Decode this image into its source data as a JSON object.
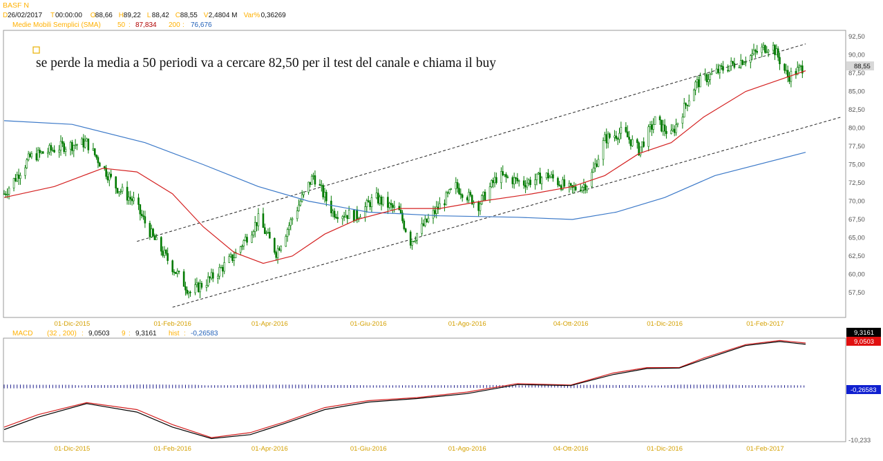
{
  "header": {
    "symbol": "BASF N",
    "bar_info": [
      {
        "key": "D",
        "value": "26/02/2017"
      },
      {
        "key": "T",
        "value": "00:00:00"
      },
      {
        "key": "O",
        "value": "88,66"
      },
      {
        "key": "H",
        "value": "89,22"
      },
      {
        "key": "L",
        "value": "88,42"
      },
      {
        "key": "C",
        "value": "88,55"
      },
      {
        "key": "V",
        "value": "2,4804 M"
      },
      {
        "key": "Var%",
        "value": "0,36269"
      }
    ],
    "sma_label": "Medie Mobili Semplici (SMA)",
    "sma50_period": "50",
    "sma50_value": "87,834",
    "sma200_period": "200",
    "sma200_value": "76,676",
    "macd_label": "MACD",
    "macd_params": "(32 , 200)",
    "macd_value": "9,0503",
    "signal_period": "9",
    "signal_value": "9,3161",
    "hist_label": "hist",
    "hist_value": "-0,26583"
  },
  "annotation": "se perde la media a 50 periodi va a cercare 82,50 per il test del canale e chiama il buy",
  "colors": {
    "candle": "#007a00",
    "sma50": "#d42020",
    "sma200": "#3a78c8",
    "macd": "#000000",
    "signal": "#d42020",
    "hist": "#1a1a8a",
    "tick_text": "#d4a000",
    "header_yellow": "#ffb000"
  },
  "chart_data": [
    {
      "type": "candlestick",
      "title": "BASF N",
      "ylim": [
        55,
        93
      ],
      "y_ticks": [
        "57,50",
        "60,00",
        "62,50",
        "65,00",
        "67,50",
        "70,00",
        "72,50",
        "75,00",
        "77,50",
        "80,00",
        "82,50",
        "85,00",
        "87,50",
        "90,00",
        "92,50"
      ],
      "x_ticks": [
        "01-Dic-2015",
        "01-Feb-2016",
        "01-Apr-2016",
        "01-Giu-2016",
        "01-Ago-2016",
        "04-Ott-2016",
        "01-Dic-2016",
        "01-Feb-2017"
      ],
      "last_price_label": "88,55",
      "close_trend": [
        {
          "date": "2015-10-20",
          "close": 71.0
        },
        {
          "date": "2015-11-05",
          "close": 76.0
        },
        {
          "date": "2015-11-25",
          "close": 77.5
        },
        {
          "date": "2015-12-10",
          "close": 78.0
        },
        {
          "date": "2015-12-28",
          "close": 72.0
        },
        {
          "date": "2016-01-08",
          "close": 70.0
        },
        {
          "date": "2016-01-20",
          "close": 65.0
        },
        {
          "date": "2016-02-01",
          "close": 61.0
        },
        {
          "date": "2016-02-12",
          "close": 57.5
        },
        {
          "date": "2016-02-25",
          "close": 59.5
        },
        {
          "date": "2016-03-10",
          "close": 62.5
        },
        {
          "date": "2016-03-25",
          "close": 67.5
        },
        {
          "date": "2016-04-05",
          "close": 63.0
        },
        {
          "date": "2016-04-20",
          "close": 70.0
        },
        {
          "date": "2016-04-28",
          "close": 73.5
        },
        {
          "date": "2016-05-10",
          "close": 68.5
        },
        {
          "date": "2016-05-25",
          "close": 68.0
        },
        {
          "date": "2016-06-05",
          "close": 70.5
        },
        {
          "date": "2016-06-20",
          "close": 68.5
        },
        {
          "date": "2016-06-27",
          "close": 64.5
        },
        {
          "date": "2016-07-10",
          "close": 68.0
        },
        {
          "date": "2016-07-25",
          "close": 72.0
        },
        {
          "date": "2016-08-08",
          "close": 69.5
        },
        {
          "date": "2016-08-20",
          "close": 73.5
        },
        {
          "date": "2016-09-05",
          "close": 72.5
        },
        {
          "date": "2016-09-20",
          "close": 73.5
        },
        {
          "date": "2016-10-04",
          "close": 71.5
        },
        {
          "date": "2016-10-15",
          "close": 72.5
        },
        {
          "date": "2016-10-25",
          "close": 78.5
        },
        {
          "date": "2016-11-05",
          "close": 79.5
        },
        {
          "date": "2016-11-15",
          "close": 77.0
        },
        {
          "date": "2016-11-25",
          "close": 81.0
        },
        {
          "date": "2016-12-05",
          "close": 79.0
        },
        {
          "date": "2016-12-20",
          "close": 86.0
        },
        {
          "date": "2017-01-05",
          "close": 88.0
        },
        {
          "date": "2017-01-20",
          "close": 89.5
        },
        {
          "date": "2017-02-05",
          "close": 91.5
        },
        {
          "date": "2017-02-15",
          "close": 87.0
        },
        {
          "date": "2017-02-26",
          "close": 88.55
        }
      ],
      "sma50": [
        {
          "date": "2015-10-20",
          "value": 70.5
        },
        {
          "date": "2015-11-20",
          "value": 72.0
        },
        {
          "date": "2015-12-20",
          "value": 74.5
        },
        {
          "date": "2016-01-10",
          "value": 74.0
        },
        {
          "date": "2016-02-01",
          "value": 71.0
        },
        {
          "date": "2016-02-20",
          "value": 66.5
        },
        {
          "date": "2016-03-10",
          "value": 63.0
        },
        {
          "date": "2016-03-28",
          "value": 61.5
        },
        {
          "date": "2016-04-15",
          "value": 62.5
        },
        {
          "date": "2016-05-05",
          "value": 65.5
        },
        {
          "date": "2016-05-25",
          "value": 67.5
        },
        {
          "date": "2016-06-20",
          "value": 69.0
        },
        {
          "date": "2016-07-15",
          "value": 69.0
        },
        {
          "date": "2016-08-10",
          "value": 70.0
        },
        {
          "date": "2016-09-10",
          "value": 71.0
        },
        {
          "date": "2016-10-05",
          "value": 72.0
        },
        {
          "date": "2016-10-25",
          "value": 73.5
        },
        {
          "date": "2016-11-15",
          "value": 76.5
        },
        {
          "date": "2016-12-05",
          "value": 78.0
        },
        {
          "date": "2016-12-25",
          "value": 81.5
        },
        {
          "date": "2017-01-20",
          "value": 85.0
        },
        {
          "date": "2017-02-26",
          "value": 87.834
        }
      ],
      "sma200": [
        {
          "date": "2015-10-20",
          "value": 81.0
        },
        {
          "date": "2015-12-01",
          "value": 80.5
        },
        {
          "date": "2016-01-15",
          "value": 78.0
        },
        {
          "date": "2016-02-20",
          "value": 75.0
        },
        {
          "date": "2016-03-25",
          "value": 72.0
        },
        {
          "date": "2016-04-25",
          "value": 70.0
        },
        {
          "date": "2016-06-01",
          "value": 68.5
        },
        {
          "date": "2016-07-15",
          "value": 68.0
        },
        {
          "date": "2016-09-01",
          "value": 67.8
        },
        {
          "date": "2016-10-05",
          "value": 67.5
        },
        {
          "date": "2016-11-01",
          "value": 68.5
        },
        {
          "date": "2016-12-01",
          "value": 70.5
        },
        {
          "date": "2017-01-01",
          "value": 73.5
        },
        {
          "date": "2017-02-26",
          "value": 76.676
        }
      ],
      "channel_upper": [
        {
          "date": "2016-01-10",
          "value": 64.5
        },
        {
          "date": "2017-02-26",
          "value": 91.5
        }
      ],
      "channel_lower": [
        {
          "date": "2016-02-01",
          "value": 55.5
        },
        {
          "date": "2017-03-20",
          "value": 81.5
        }
      ]
    },
    {
      "type": "line",
      "title": "MACD",
      "x_ticks": [
        "01-Dic-2015",
        "01-Feb-2016",
        "01-Apr-2016",
        "01-Giu-2016",
        "01-Ago-2016",
        "04-Ott-2016",
        "01-Dic-2016",
        "01-Feb-2017"
      ],
      "y_tick_bottom": "-10,233",
      "series": [
        {
          "name": "MACD",
          "last": 9.0503,
          "values": [
            {
              "date": "2015-10-20",
              "v": -8.0
            },
            {
              "date": "2015-11-10",
              "v": -5.5
            },
            {
              "date": "2015-12-10",
              "v": -2.8
            },
            {
              "date": "2016-01-10",
              "v": -4.5
            },
            {
              "date": "2016-02-01",
              "v": -7.5
            },
            {
              "date": "2016-02-25",
              "v": -9.8
            },
            {
              "date": "2016-03-20",
              "v": -9.0
            },
            {
              "date": "2016-04-10",
              "v": -6.8
            },
            {
              "date": "2016-05-05",
              "v": -4.0
            },
            {
              "date": "2016-06-01",
              "v": -2.5
            },
            {
              "date": "2016-07-01",
              "v": -1.8
            },
            {
              "date": "2016-08-01",
              "v": -0.8
            },
            {
              "date": "2016-09-01",
              "v": 1.0
            },
            {
              "date": "2016-10-04",
              "v": 0.8
            },
            {
              "date": "2016-10-30",
              "v": 3.0
            },
            {
              "date": "2016-11-20",
              "v": 4.2
            },
            {
              "date": "2016-12-10",
              "v": 4.3
            },
            {
              "date": "2016-12-25",
              "v": 6.0
            },
            {
              "date": "2017-01-20",
              "v": 8.8
            },
            {
              "date": "2017-02-10",
              "v": 9.6
            },
            {
              "date": "2017-02-26",
              "v": 9.0503
            }
          ]
        },
        {
          "name": "Signal",
          "last": 9.3161,
          "values": [
            {
              "date": "2015-10-20",
              "v": -7.5
            },
            {
              "date": "2015-11-10",
              "v": -5.0
            },
            {
              "date": "2015-12-10",
              "v": -2.6
            },
            {
              "date": "2016-01-10",
              "v": -4.0
            },
            {
              "date": "2016-02-01",
              "v": -7.0
            },
            {
              "date": "2016-02-25",
              "v": -9.6
            },
            {
              "date": "2016-03-20",
              "v": -8.6
            },
            {
              "date": "2016-04-10",
              "v": -6.5
            },
            {
              "date": "2016-05-05",
              "v": -3.6
            },
            {
              "date": "2016-06-01",
              "v": -2.2
            },
            {
              "date": "2016-07-01",
              "v": -1.6
            },
            {
              "date": "2016-08-01",
              "v": -0.5
            },
            {
              "date": "2016-09-01",
              "v": 1.2
            },
            {
              "date": "2016-10-04",
              "v": 0.9
            },
            {
              "date": "2016-10-30",
              "v": 3.3
            },
            {
              "date": "2016-11-20",
              "v": 4.4
            },
            {
              "date": "2016-12-10",
              "v": 4.4
            },
            {
              "date": "2016-12-25",
              "v": 6.3
            },
            {
              "date": "2017-01-20",
              "v": 9.0
            },
            {
              "date": "2017-02-10",
              "v": 9.8
            },
            {
              "date": "2017-02-26",
              "v": 9.3161
            }
          ]
        },
        {
          "name": "hist",
          "last": -0.26583
        }
      ],
      "value_labels": [
        "9,3161",
        "9,0503",
        "-0,26583"
      ]
    }
  ]
}
